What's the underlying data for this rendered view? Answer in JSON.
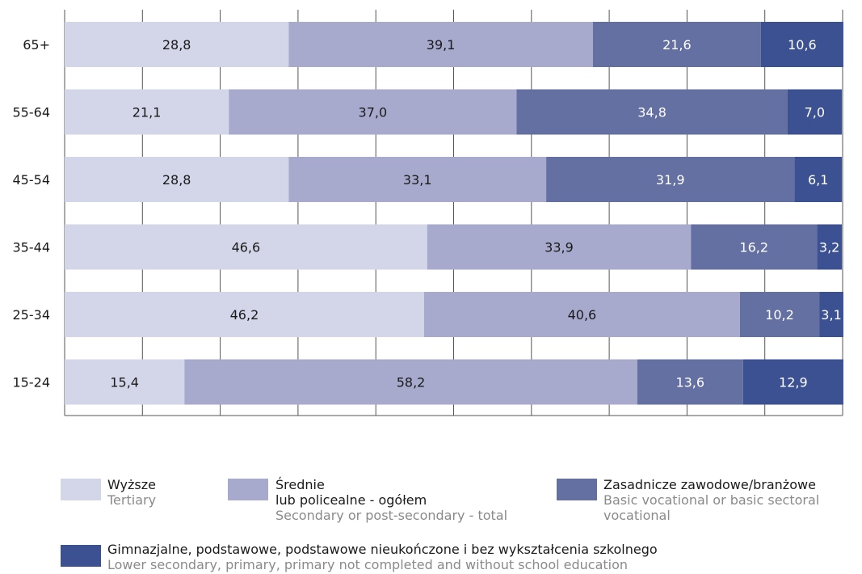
{
  "chart_data": {
    "type": "bar",
    "orientation": "horizontal",
    "stacked": true,
    "categories": [
      "65+",
      "55-64",
      "45-54",
      "35-44",
      "25-34",
      "15-24"
    ],
    "series": [
      {
        "name": "Wyższe",
        "name_en": "Tertiary",
        "color": "#d3d5e8",
        "values": [
          28.8,
          21.1,
          28.8,
          46.6,
          46.2,
          15.4
        ],
        "labels": [
          "28,8",
          "21,1",
          "28,8",
          "46,6",
          "46,2",
          "15,4"
        ]
      },
      {
        "name": "Średnie lub policealne - ogółem",
        "name_en": "Secondary or post-secondary - total",
        "color": "#a7aacc",
        "values": [
          39.1,
          37.0,
          33.1,
          33.9,
          40.6,
          58.2
        ],
        "labels": [
          "39,1",
          "37,0",
          "33,1",
          "33,9",
          "40,6",
          "58,2"
        ]
      },
      {
        "name": "Zasadnicze zawodowe/branżowe",
        "name_en": "Basic vocational or basic sectoral vocational",
        "color": "#6470a2",
        "values": [
          21.6,
          34.8,
          31.9,
          16.2,
          10.2,
          13.6
        ],
        "labels": [
          "21,6",
          "34,8",
          "31,9",
          "16,2",
          "10,2",
          "13,6"
        ]
      },
      {
        "name": "Gimnazjalne, podstawowe, podstawowe nieukończone i bez wykształcenia szkolnego",
        "name_en": "Lower secondary, primary, primary not completed and without school education",
        "color": "#3c5191",
        "values": [
          10.6,
          7.0,
          6.1,
          3.2,
          3.1,
          12.9
        ],
        "labels": [
          "10,6",
          "7,0",
          "6,1",
          "3,2",
          "3,1",
          "12,9"
        ]
      }
    ],
    "xlim": [
      0,
      100
    ],
    "x_ticks": [
      "0",
      "10",
      "20",
      "30",
      "40",
      "50",
      "60",
      "70",
      "80",
      "90",
      "100%"
    ],
    "grid": true,
    "legend_position": "bottom"
  },
  "legend": {
    "tertiary_pl": "Wyższe",
    "tertiary_en": "Tertiary",
    "secondary_pl_1": "Średnie",
    "secondary_pl_2": "lub policealne - ogółem",
    "secondary_en": "Secondary or post-secondary - total",
    "vocational_pl": "Zasadnicze zawodowe/branżowe",
    "vocational_en_1": "Basic vocational or basic sectoral",
    "vocational_en_2": "vocational",
    "lower_pl": "Gimnazjalne, podstawowe, podstawowe nieukończone i bez wykształcenia szkolnego",
    "lower_en": "Lower secondary, primary, primary not completed and without school education"
  }
}
